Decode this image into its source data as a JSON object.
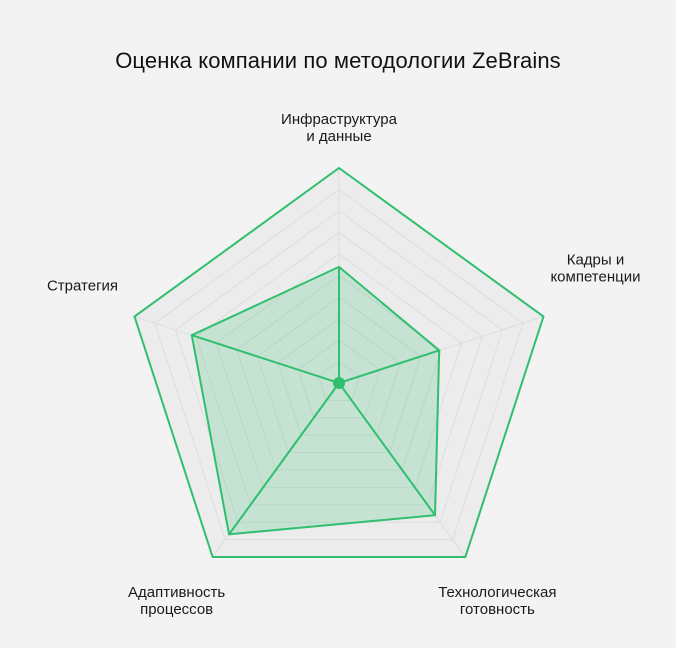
{
  "chart_data": {
    "type": "radar",
    "title": "Оценка компании по методологии ZeBrains",
    "axes": [
      {
        "key": "infra",
        "label_lines": [
          "Инфраструктура",
          "и данные"
        ]
      },
      {
        "key": "people",
        "label_lines": [
          "Кадры и",
          "компетенции"
        ]
      },
      {
        "key": "tech",
        "label_lines": [
          "Технологическая",
          "готовность"
        ]
      },
      {
        "key": "process",
        "label_lines": [
          "Адаптивность",
          "процессов"
        ]
      },
      {
        "key": "strategy",
        "label_lines": [
          "Стратегия"
        ]
      }
    ],
    "scale_max": 10,
    "grid_levels": 10,
    "grid": true,
    "series": [
      {
        "values": [
          5.4,
          4.9,
          7.6,
          8.7,
          7.2
        ]
      }
    ],
    "colors": {
      "line": "#2fbf6f",
      "fill": "#2fbf6f",
      "grid": "#dddddd",
      "grid_bg": "#ececec",
      "center_dot": "#2fbf6f",
      "background": "#f3f3f3"
    }
  }
}
